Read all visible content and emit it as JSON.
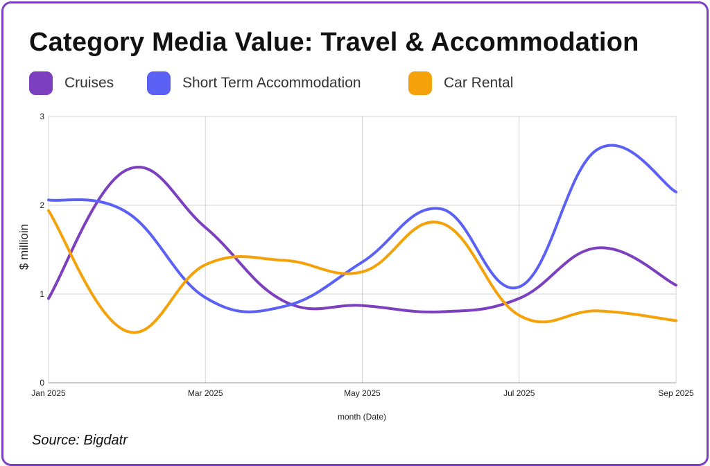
{
  "chart_data": {
    "type": "line",
    "title": "Category Media Value: Travel & Accommodation",
    "xlabel": "month (Date)",
    "ylabel": "$ millioin",
    "x": [
      "Jan 2025",
      "Feb 2025",
      "Mar 2025",
      "Apr 2025",
      "May 2025",
      "Jun 2025",
      "Jul 2025",
      "Aug 2025",
      "Sep 2025"
    ],
    "x_tick_labels": [
      "Jan 2025",
      "Mar 2025",
      "May 2025",
      "Jul 2025",
      "Sep 2025"
    ],
    "y_tick_labels": [
      "0",
      "1",
      "2",
      "3"
    ],
    "ylim": [
      0,
      3
    ],
    "grid": true,
    "legend_position": "top-left",
    "series": [
      {
        "name": "Cruises",
        "color": "#7b3fbf",
        "values": [
          0.95,
          2.4,
          1.75,
          0.92,
          0.87,
          0.8,
          0.95,
          1.52,
          1.1
        ]
      },
      {
        "name": "Short Term Accommodation",
        "color": "#5b61f5",
        "values": [
          2.06,
          1.92,
          0.96,
          0.86,
          1.36,
          1.96,
          1.08,
          2.63,
          2.15
        ]
      },
      {
        "name": "Car Rental",
        "color": "#f5a20a",
        "values": [
          1.94,
          0.58,
          1.33,
          1.38,
          1.25,
          1.8,
          0.76,
          0.81,
          0.7
        ]
      }
    ],
    "source": "Source: Bigdatr"
  }
}
